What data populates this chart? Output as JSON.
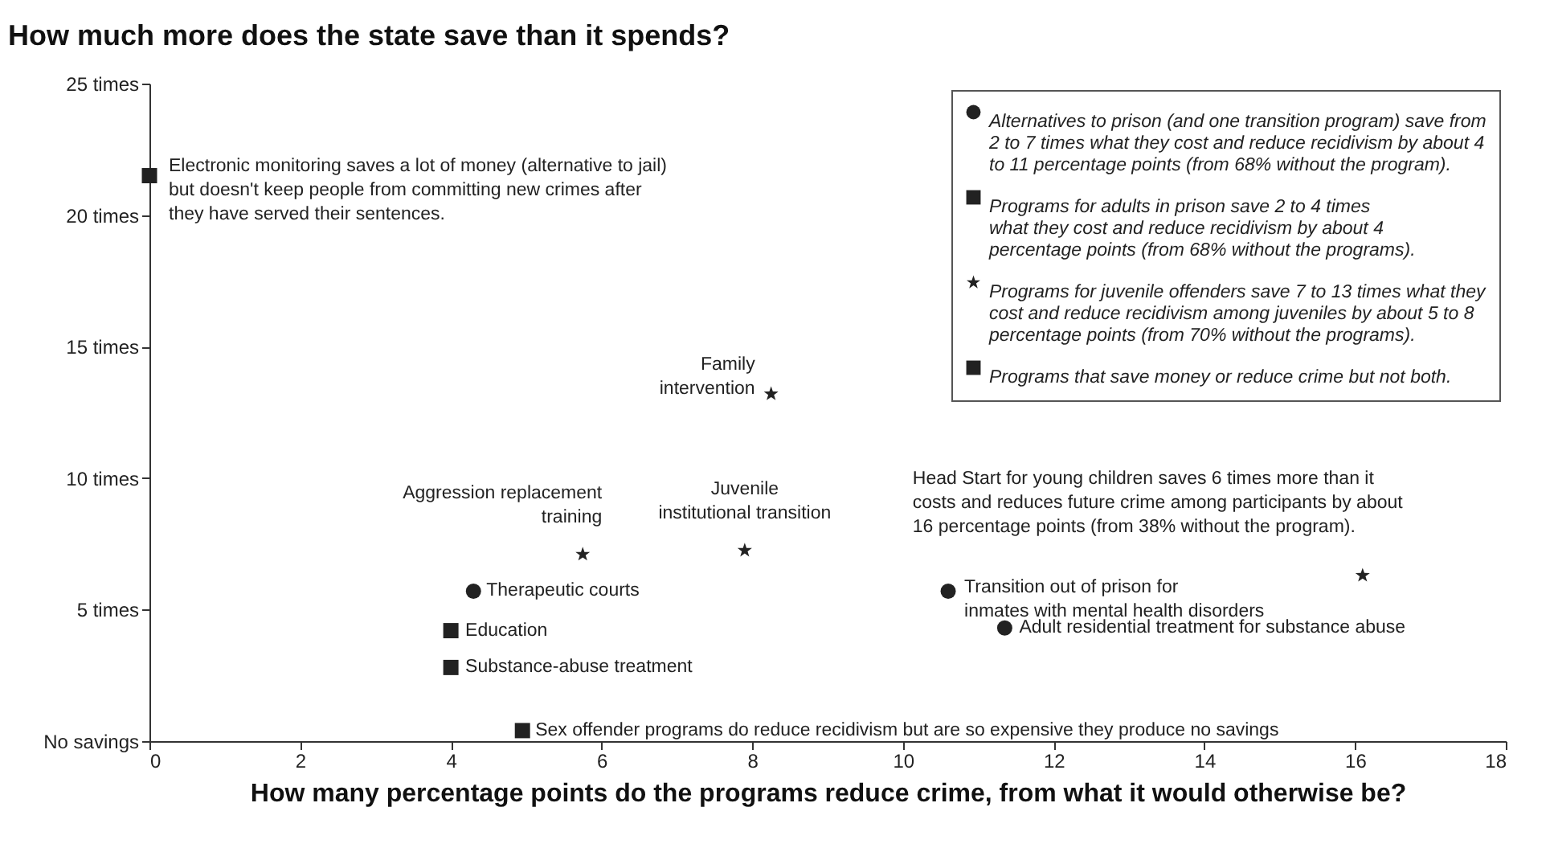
{
  "chart_data": {
    "type": "scatter",
    "title": "How much more does the state save than it spends?",
    "xlabel": "How many percentage points do the programs reduce crime, from what it would otherwise be?",
    "xlim": [
      0,
      18
    ],
    "xticks": [
      0,
      2,
      4,
      6,
      8,
      10,
      12,
      14,
      16,
      18
    ],
    "ylim": [
      0,
      25
    ],
    "yticks": [
      {
        "value": 0,
        "label": "No savings"
      },
      {
        "value": 5,
        "label": "5 times"
      },
      {
        "value": 10,
        "label": "10 times"
      },
      {
        "value": 15,
        "label": "15 times"
      },
      {
        "value": 20,
        "label": "20 times"
      },
      {
        "value": 25,
        "label": "25 times"
      }
    ],
    "legend": "top right",
    "series": [
      {
        "name": "Alternatives to prison (and one transition program) save from\n2 to 7 times what they cost and reduce recidivism by about 4\nto 11 percentage points (from 68% without the program).",
        "color": "#222222",
        "marker": "circle",
        "x": [
          4.3,
          10.6,
          11.35
        ],
        "values": [
          5.7,
          5.7,
          4.3
        ]
      },
      {
        "name": "Programs for adults in prison save 2 to 4 times\nwhat they cost and reduce recidivism by about 4\npercentage points (from 68% without the programs).",
        "color": "#222222",
        "marker": "square",
        "x": [
          4.0,
          4.0
        ],
        "values": [
          4.2,
          2.8
        ]
      },
      {
        "name": "Programs for juvenile offenders save 7 to 13 times what they\ncost and reduce recidivism among juveniles by about 5 to 8\npercentage points (from 70% without the programs).",
        "color": "#222222",
        "marker": "star",
        "x": [
          8.25,
          5.75,
          7.9
        ],
        "values": [
          13.2,
          7.1,
          7.25
        ]
      },
      {
        "name": "Programs that save money or reduce crime but not both.",
        "color": "#222222",
        "marker": "square",
        "x": [
          0,
          4.95
        ],
        "values": [
          21.5,
          0.4
        ]
      },
      {
        "color": "#222222",
        "marker": "star",
        "x": [
          16.1
        ],
        "values": [
          6.3
        ]
      }
    ],
    "annotations": [
      {
        "text": "Electronic monitoring saves a lot of money (alternative to jail)\nbut doesn't keep people from committing new crimes after\nthey have served their sentences.",
        "x": 0,
        "y": 21.5
      },
      {
        "text": "Family\nintervention",
        "x": 8.25,
        "y": 13.2
      },
      {
        "text": "Aggression replacement\ntraining",
        "x": 5.75,
        "y": 7.1
      },
      {
        "text": "Juvenile\ninstitutional transition",
        "x": 7.9,
        "y": 7.25
      },
      {
        "text": "Therapeutic courts",
        "x": 4.3,
        "y": 5.7
      },
      {
        "text": "Transition out of prison for\ninmates with mental health disorders",
        "x": 10.6,
        "y": 5.7
      },
      {
        "text": "Education",
        "x": 4.0,
        "y": 4.2
      },
      {
        "text": "Substance-abuse treatment",
        "x": 4.0,
        "y": 2.8
      },
      {
        "text": "Adult residential treatment for substance abuse",
        "x": 11.35,
        "y": 4.3
      },
      {
        "text": "Sex offender programs do reduce recidivism but are so expensive they produce no savings",
        "x": 4.95,
        "y": 0.4
      },
      {
        "text": "Head Start for young children saves 6 times more than it\ncosts and reduces future crime among participants by about\n16 percentage points (from 38% without the program).",
        "x": 16.1,
        "y": 6.3
      }
    ]
  }
}
